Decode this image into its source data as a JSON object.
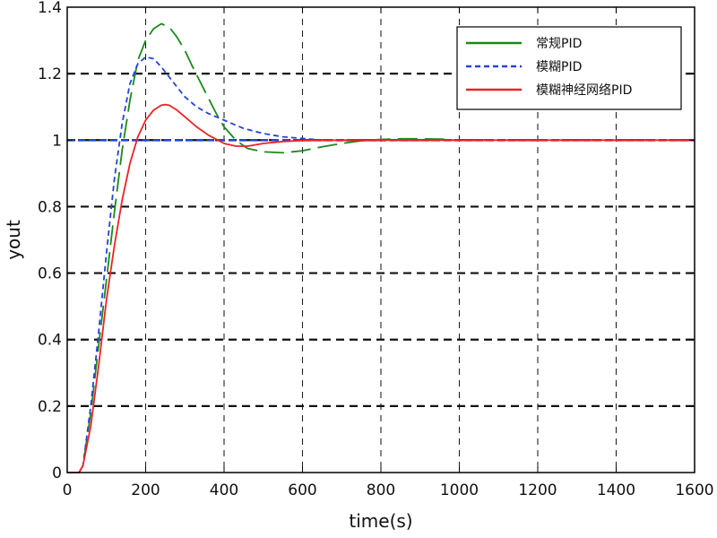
{
  "chart_data": {
    "type": "line",
    "xlabel": "time(s)",
    "ylabel": "yout",
    "xlim": [
      0,
      1600
    ],
    "ylim": [
      0,
      1.4
    ],
    "xticks": [
      0,
      200,
      400,
      600,
      800,
      1000,
      1200,
      1400,
      1600
    ],
    "yticks": [
      0,
      0.2,
      0.4,
      0.6,
      0.8,
      1,
      1.2,
      1.4
    ],
    "xtick_labels": [
      "0",
      "200",
      "400",
      "600",
      "800",
      "1000",
      "1200",
      "1400",
      "1600"
    ],
    "ytick_labels": [
      "0",
      "0.2",
      "0.4",
      "0.6",
      "0.8",
      "1",
      "1.2",
      "1.4"
    ],
    "grid": true,
    "grid_style": "dashed",
    "legend_position": "top-right",
    "series": [
      {
        "name": "常规PID",
        "color": "#1a8a1a",
        "line_style": "dash-dot",
        "x": [
          0,
          30,
          40,
          60,
          80,
          100,
          120,
          140,
          160,
          180,
          200,
          220,
          240,
          260,
          280,
          300,
          320,
          350,
          380,
          400,
          430,
          460,
          500,
          550,
          600,
          650,
          700,
          750,
          800,
          850,
          900,
          950,
          980
        ],
        "y": [
          0,
          0,
          0.02,
          0.18,
          0.38,
          0.58,
          0.78,
          0.97,
          1.12,
          1.24,
          1.3,
          1.335,
          1.35,
          1.34,
          1.31,
          1.27,
          1.22,
          1.15,
          1.08,
          1.04,
          1.0,
          0.975,
          0.965,
          0.962,
          0.968,
          0.98,
          0.99,
          0.998,
          1.002,
          1.004,
          1.004,
          1.003,
          1.002
        ]
      },
      {
        "name": "模糊PID",
        "color": "#2244dd",
        "line_style": "dashed",
        "x": [
          0,
          30,
          40,
          60,
          80,
          100,
          120,
          140,
          160,
          180,
          200,
          220,
          240,
          260,
          280,
          300,
          330,
          360,
          400,
          450,
          500,
          550,
          600,
          650,
          700,
          800,
          900,
          1000,
          1200,
          1400,
          1600
        ],
        "y": [
          0,
          0,
          0.02,
          0.2,
          0.42,
          0.66,
          0.88,
          1.05,
          1.17,
          1.23,
          1.25,
          1.245,
          1.22,
          1.19,
          1.16,
          1.13,
          1.1,
          1.08,
          1.06,
          1.035,
          1.02,
          1.01,
          1.005,
          1.0,
          0.999,
          0.999,
          1.0,
          1.0,
          1.0,
          1.0,
          1.0
        ]
      },
      {
        "name": "模糊神经网络PID",
        "color": "#ee2222",
        "line_style": "solid",
        "x": [
          0,
          30,
          40,
          60,
          80,
          100,
          120,
          140,
          160,
          180,
          200,
          220,
          240,
          250,
          260,
          280,
          300,
          330,
          360,
          400,
          430,
          460,
          500,
          550,
          600,
          700,
          800,
          900,
          1000,
          1200,
          1400,
          1600
        ],
        "y": [
          0,
          0,
          0.02,
          0.14,
          0.32,
          0.52,
          0.68,
          0.82,
          0.93,
          1.01,
          1.06,
          1.09,
          1.105,
          1.107,
          1.105,
          1.09,
          1.07,
          1.04,
          1.015,
          0.99,
          0.982,
          0.982,
          0.99,
          0.996,
          0.999,
          1.0,
          1.0,
          1.0,
          1.0,
          1.0,
          1.0,
          1.0
        ]
      },
      {
        "name": "",
        "color": "#2244dd",
        "line_style": "dashed-reference",
        "x": [
          0,
          1600
        ],
        "y": [
          1.0,
          1.0
        ]
      }
    ]
  }
}
